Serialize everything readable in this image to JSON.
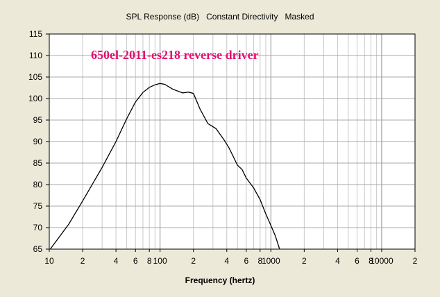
{
  "chart_data": {
    "type": "line",
    "title": "SPL Response (dB)   Constant Directivity   Masked",
    "xlabel": "Frequency (hertz)",
    "ylabel": "",
    "xscale": "log",
    "xlim": [
      10,
      20000
    ],
    "ylim": [
      65,
      115
    ],
    "y_ticks": [
      65,
      70,
      75,
      80,
      85,
      90,
      95,
      100,
      105,
      110,
      115
    ],
    "x_ticks": [
      {
        "value": 10,
        "label": "10"
      },
      {
        "value": 20,
        "label": "2"
      },
      {
        "value": 40,
        "label": "4"
      },
      {
        "value": 60,
        "label": "6"
      },
      {
        "value": 80,
        "label": "8"
      },
      {
        "value": 100,
        "label": "100"
      },
      {
        "value": 200,
        "label": "2"
      },
      {
        "value": 400,
        "label": "4"
      },
      {
        "value": 600,
        "label": "6"
      },
      {
        "value": 800,
        "label": "8"
      },
      {
        "value": 1000,
        "label": "1000"
      },
      {
        "value": 2000,
        "label": "2"
      },
      {
        "value": 4000,
        "label": "4"
      },
      {
        "value": 6000,
        "label": "6"
      },
      {
        "value": 8000,
        "label": "8"
      },
      {
        "value": 10000,
        "label": "10000"
      },
      {
        "value": 20000,
        "label": "2"
      }
    ],
    "grid": true,
    "annotation": {
      "text": "650el-2011-es218 reverse driver",
      "color": "#e0106e"
    },
    "line_color": "#000000",
    "series": [
      {
        "x": [
          10.2,
          15,
          20,
          30,
          40,
          50,
          60,
          70,
          80,
          90,
          100,
          110,
          130,
          160,
          180,
          200,
          230,
          270,
          320,
          380,
          420,
          500,
          550,
          600,
          700,
          800,
          900,
          1000,
          1100,
          1200
        ],
        "y": [
          65,
          70.8,
          76.2,
          84,
          90,
          95.3,
          99.2,
          101.4,
          102.6,
          103.2,
          103.5,
          103.3,
          102.2,
          101.3,
          101.5,
          101.2,
          97.5,
          94.2,
          93,
          90.3,
          88.5,
          84.5,
          83.5,
          81.5,
          79.2,
          76.5,
          73.2,
          70.5,
          68,
          65
        ]
      }
    ]
  }
}
